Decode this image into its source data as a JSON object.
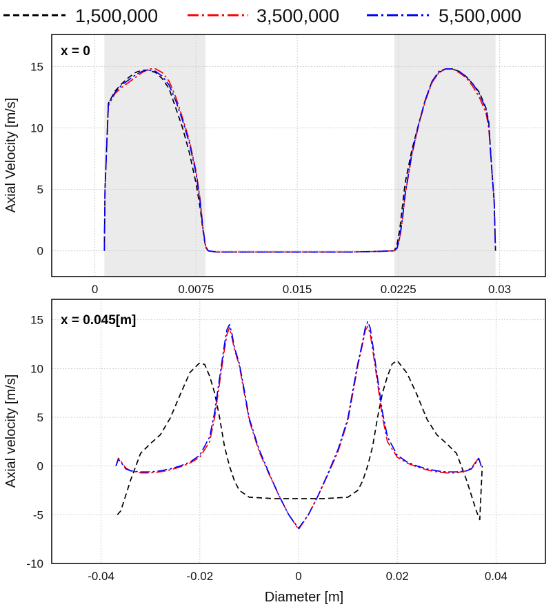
{
  "legend": [
    {
      "label": "1,500,000",
      "color": "#000000",
      "dash": "dashed"
    },
    {
      "label": "3,500,000",
      "color": "#ff0000",
      "dash": "dash-dot"
    },
    {
      "label": "5,500,000",
      "color": "#0000ff",
      "dash": "dash-dot"
    }
  ],
  "chart_data": [
    {
      "type": "line",
      "title": "x = 0",
      "xlabel": "",
      "ylabel": "Axial Velocity [m/s]",
      "xlim": [
        -0.0032,
        0.0334
      ],
      "ylim": [
        -2.1,
        17.6
      ],
      "xticks": [
        0,
        0.0075,
        0.015,
        0.0225,
        0.03
      ],
      "xtick_labels": [
        "0",
        "0.0075",
        "0.015",
        "0.0225",
        "0.03"
      ],
      "yticks": [
        0,
        5,
        10,
        15
      ],
      "ytick_labels": [
        "0",
        "5",
        "10",
        "15"
      ],
      "grid": true,
      "shaded_regions": [
        [
          0.0007,
          0.0082
        ],
        [
          0.0222,
          0.0297
        ]
      ],
      "series": [
        {
          "name": "1,500,000",
          "color": "#000000",
          "x": [
            0.0007,
            0.00075,
            0.001,
            0.0015,
            0.002,
            0.0025,
            0.003,
            0.0035,
            0.004,
            0.0045,
            0.005,
            0.0055,
            0.006,
            0.0065,
            0.007,
            0.0075,
            0.0078,
            0.008,
            0.0082,
            0.0084,
            0.009,
            0.011,
            0.013,
            0.015,
            0.017,
            0.019,
            0.021,
            0.0222,
            0.0224,
            0.0226,
            0.0228,
            0.023,
            0.0235,
            0.024,
            0.0245,
            0.025,
            0.0255,
            0.026,
            0.0265,
            0.027,
            0.0275,
            0.028,
            0.0285,
            0.029,
            0.0292,
            0.0294,
            0.0296,
            0.0297
          ],
          "y": [
            0,
            5,
            12,
            13,
            13.6,
            14.1,
            14.5,
            14.7,
            14.7,
            14.5,
            14,
            13.2,
            11.6,
            10,
            8,
            5.5,
            3.5,
            1.8,
            0.3,
            0,
            -0.1,
            -0.1,
            -0.1,
            -0.1,
            -0.1,
            -0.1,
            -0.05,
            0,
            0.5,
            1.7,
            3.6,
            5.5,
            8.2,
            10.3,
            12.3,
            13.8,
            14.5,
            14.8,
            14.8,
            14.6,
            14.2,
            13.6,
            12.9,
            11.6,
            10.5,
            7,
            4,
            0
          ]
        },
        {
          "name": "3,500,000",
          "color": "#ff0000",
          "x": [
            0.0007,
            0.00075,
            0.001,
            0.0015,
            0.002,
            0.0025,
            0.003,
            0.0035,
            0.004,
            0.0045,
            0.005,
            0.0055,
            0.006,
            0.0065,
            0.007,
            0.0075,
            0.0078,
            0.008,
            0.0082,
            0.0084,
            0.009,
            0.011,
            0.013,
            0.015,
            0.017,
            0.019,
            0.021,
            0.0222,
            0.0224,
            0.0226,
            0.0228,
            0.023,
            0.0235,
            0.024,
            0.0245,
            0.025,
            0.0255,
            0.026,
            0.0265,
            0.027,
            0.0275,
            0.028,
            0.0285,
            0.029,
            0.0292,
            0.0294,
            0.0296,
            0.0297
          ],
          "y": [
            0,
            5,
            11.8,
            12.8,
            13.3,
            13.7,
            14.1,
            14.5,
            14.8,
            14.8,
            14.5,
            13.8,
            12.5,
            10.8,
            9,
            6.5,
            4.2,
            2,
            0.4,
            0,
            -0.1,
            -0.1,
            -0.1,
            -0.1,
            -0.1,
            -0.1,
            -0.05,
            0,
            0.2,
            1,
            2.5,
            4.5,
            7.8,
            10.2,
            12.2,
            13.7,
            14.5,
            14.8,
            14.8,
            14.5,
            14.1,
            13.4,
            12.5,
            11.2,
            10,
            7,
            4,
            0
          ]
        },
        {
          "name": "5,500,000",
          "color": "#0000ff",
          "x": [
            0.0007,
            0.00075,
            0.001,
            0.0015,
            0.002,
            0.0025,
            0.003,
            0.0035,
            0.004,
            0.0045,
            0.005,
            0.0055,
            0.006,
            0.0065,
            0.007,
            0.0075,
            0.0078,
            0.008,
            0.0082,
            0.0084,
            0.009,
            0.011,
            0.013,
            0.015,
            0.017,
            0.019,
            0.021,
            0.0222,
            0.0224,
            0.0226,
            0.0228,
            0.023,
            0.0235,
            0.024,
            0.0245,
            0.025,
            0.0255,
            0.026,
            0.0265,
            0.027,
            0.0275,
            0.028,
            0.0285,
            0.029,
            0.0292,
            0.0294,
            0.0296,
            0.0297
          ],
          "y": [
            0,
            5,
            12,
            12.9,
            13.5,
            13.9,
            14.3,
            14.6,
            14.7,
            14.6,
            14.2,
            13.5,
            12.2,
            10.6,
            8.8,
            6.3,
            4,
            1.9,
            0.4,
            0,
            -0.1,
            -0.1,
            -0.1,
            -0.1,
            -0.1,
            -0.1,
            -0.05,
            0,
            0.2,
            1.1,
            2.6,
            4.6,
            7.9,
            10.3,
            12.3,
            13.8,
            14.6,
            14.8,
            14.8,
            14.6,
            14.2,
            13.6,
            12.8,
            11.5,
            10.3,
            7,
            4,
            0
          ]
        }
      ]
    },
    {
      "type": "line",
      "title": "x = 0.045[m]",
      "xlabel": "Diameter [m]",
      "ylabel": "Axial velocity [m/s]",
      "xlim": [
        -0.05,
        0.05
      ],
      "ylim": [
        -10,
        17.1
      ],
      "xticks": [
        -0.04,
        -0.02,
        0,
        0.02,
        0.04
      ],
      "xtick_labels": [
        "-0.04",
        "-0.02",
        "0",
        "0.02",
        "0.04"
      ],
      "yticks": [
        -10,
        -5,
        0,
        5,
        10,
        15
      ],
      "ytick_labels": [
        "-10",
        "-5",
        "0",
        "5",
        "10",
        "15"
      ],
      "grid": true,
      "series": [
        {
          "name": "1,500,000",
          "color": "#000000",
          "x": [
            -0.0367,
            -0.036,
            -0.034,
            -0.032,
            -0.03,
            -0.028,
            -0.026,
            -0.024,
            -0.022,
            -0.02,
            -0.019,
            -0.018,
            -0.017,
            -0.016,
            -0.015,
            -0.014,
            -0.013,
            -0.012,
            -0.01,
            -0.005,
            0,
            0.005,
            0.01,
            0.012,
            0.013,
            0.014,
            0.015,
            0.016,
            0.017,
            0.018,
            0.019,
            0.02,
            0.022,
            0.024,
            0.026,
            0.028,
            0.03,
            0.032,
            0.034,
            0.036,
            0.0367,
            0.0372
          ],
          "y": [
            -5,
            -4.6,
            -1.4,
            1.3,
            2.3,
            3.2,
            4.9,
            7.3,
            9.6,
            10.6,
            10.4,
            9.2,
            7.5,
            5,
            2,
            0,
            -1.5,
            -2.5,
            -3.2,
            -3.35,
            -3.35,
            -3.35,
            -3.2,
            -2.5,
            -1.5,
            0,
            2,
            5,
            7.5,
            9.2,
            10.5,
            10.8,
            9.5,
            7.3,
            4.8,
            3.2,
            2.3,
            1.3,
            -1.4,
            -4.6,
            -5.5,
            0
          ]
        },
        {
          "name": "3,500,000",
          "color": "#ff0000",
          "x": [
            -0.037,
            -0.0365,
            -0.036,
            -0.035,
            -0.034,
            -0.032,
            -0.03,
            -0.028,
            -0.026,
            -0.024,
            -0.022,
            -0.02,
            -0.018,
            -0.017,
            -0.016,
            -0.015,
            -0.0145,
            -0.014,
            -0.0135,
            -0.013,
            -0.012,
            -0.011,
            -0.01,
            -0.008,
            -0.006,
            -0.004,
            -0.002,
            0,
            0.002,
            0.004,
            0.006,
            0.008,
            0.01,
            0.011,
            0.012,
            0.013,
            0.0135,
            0.014,
            0.0145,
            0.015,
            0.016,
            0.017,
            0.018,
            0.02,
            0.022,
            0.024,
            0.026,
            0.028,
            0.03,
            0.032,
            0.034,
            0.035,
            0.036,
            0.0365,
            0.037
          ],
          "y": [
            0,
            0.8,
            0.5,
            -0.2,
            -0.5,
            -0.7,
            -0.7,
            -0.6,
            -0.4,
            -0.1,
            0.3,
            0.9,
            2.5,
            5,
            8.5,
            12,
            13.5,
            14.2,
            13.2,
            12,
            10.3,
            7.5,
            4.7,
            1.5,
            -0.8,
            -3,
            -5,
            -6.5,
            -5,
            -3,
            -0.8,
            1.5,
            4.7,
            7.5,
            10.3,
            12.6,
            13.9,
            14.3,
            13.6,
            12,
            8.5,
            5,
            2.5,
            0.9,
            0.3,
            -0.1,
            -0.4,
            -0.6,
            -0.7,
            -0.7,
            -0.5,
            -0.2,
            0.5,
            0.8,
            0
          ]
        },
        {
          "name": "5,500,000",
          "color": "#0000ff",
          "x": [
            -0.037,
            -0.0365,
            -0.036,
            -0.035,
            -0.034,
            -0.032,
            -0.03,
            -0.028,
            -0.026,
            -0.024,
            -0.022,
            -0.02,
            -0.018,
            -0.017,
            -0.016,
            -0.015,
            -0.0145,
            -0.014,
            -0.0135,
            -0.013,
            -0.012,
            -0.011,
            -0.01,
            -0.008,
            -0.006,
            -0.004,
            -0.002,
            0,
            0.002,
            0.004,
            0.006,
            0.008,
            0.01,
            0.011,
            0.012,
            0.013,
            0.0135,
            0.014,
            0.0145,
            0.015,
            0.016,
            0.017,
            0.018,
            0.02,
            0.022,
            0.024,
            0.026,
            0.028,
            0.03,
            0.032,
            0.034,
            0.035,
            0.036,
            0.0365,
            0.037
          ],
          "y": [
            0,
            0.7,
            0.4,
            -0.3,
            -0.5,
            -0.6,
            -0.6,
            -0.5,
            -0.3,
            0,
            0.4,
            1.1,
            3,
            5.5,
            9,
            12.5,
            14,
            14.5,
            13.6,
            12.2,
            10.5,
            7.8,
            4.9,
            1.7,
            -0.7,
            -3,
            -5,
            -6.4,
            -5,
            -3,
            -0.7,
            1.7,
            4.9,
            7.8,
            10.5,
            12.8,
            14.2,
            14.8,
            14.2,
            12.5,
            9,
            5.5,
            3,
            1.1,
            0.4,
            0,
            -0.3,
            -0.5,
            -0.6,
            -0.6,
            -0.5,
            -0.3,
            0.4,
            0.8,
            0
          ]
        }
      ]
    }
  ]
}
